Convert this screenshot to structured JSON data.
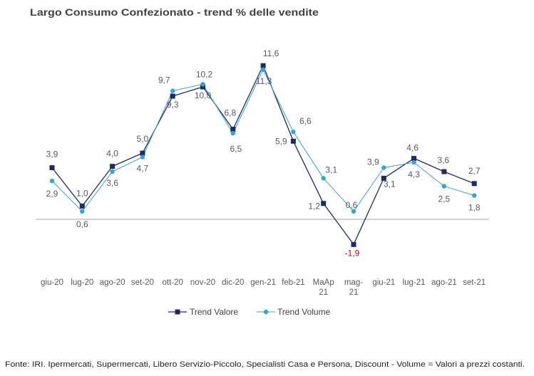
{
  "chart_data": {
    "type": "line",
    "title": "Largo Consumo Confezionato - trend % delle vendite",
    "categories": [
      "giu-20",
      "lug-20",
      "ago-20",
      "set-20",
      "ott-20",
      "nov-20",
      "dic-20",
      "gen-21",
      "feb-21",
      "MaAp 21",
      "mag-21",
      "giu-21",
      "lug-21",
      "ago-21",
      "set-21"
    ],
    "series": [
      {
        "name": "Trend Valore",
        "values": [
          3.9,
          1.0,
          4.0,
          5.0,
          9.3,
          10.0,
          6.8,
          11.6,
          5.9,
          1.2,
          -1.9,
          3.1,
          4.6,
          3.6,
          2.7
        ],
        "color": "#1b2a6b",
        "marker": "square"
      },
      {
        "name": "Trend Volume",
        "values": [
          2.9,
          0.6,
          3.6,
          4.7,
          9.7,
          10.2,
          6.5,
          11.3,
          6.6,
          3.1,
          0.6,
          3.9,
          4.3,
          2.5,
          1.8
        ],
        "color": "#2aa8dc",
        "marker": "circle"
      }
    ],
    "data_labels": true,
    "negative_label_color": "#d0021b",
    "axis_line_color": "#a6a6a6",
    "legend": "bottom",
    "grid": false
  },
  "footer": {
    "source": "Fonte: IRI. Ipermercati, Supermercati, Libero Servizio-Piccolo,  Specialisti Casa e Persona, Discount -  Volume =  Valori a prezzi  costanti."
  }
}
